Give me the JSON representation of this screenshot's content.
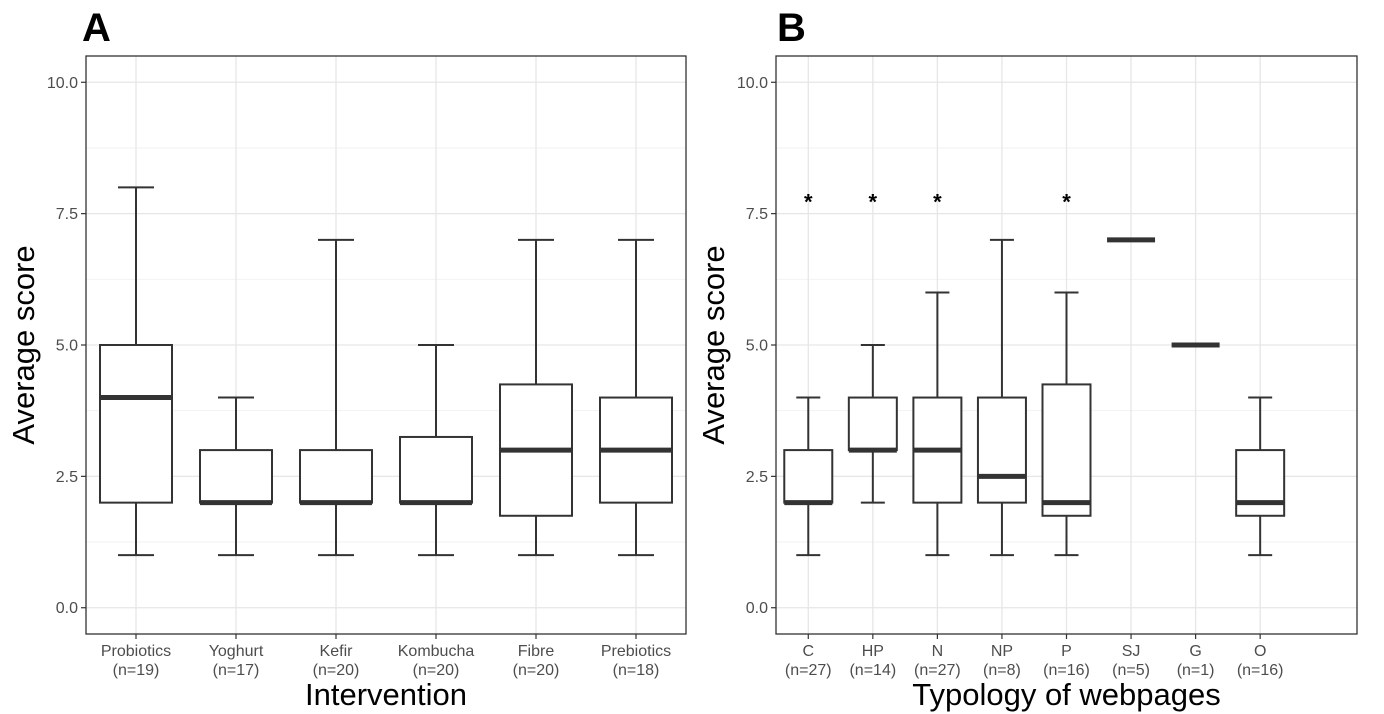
{
  "chart_data": [
    {
      "type": "box",
      "panel_label": "A",
      "xlabel": "Intervention",
      "ylabel": "Average score",
      "ylim": [
        -0.5,
        10.5
      ],
      "yticks": [
        "0.0",
        "2.5",
        "5.0",
        "7.5",
        "10.0"
      ],
      "grid": true,
      "categories": [
        {
          "label": "Probiotics",
          "n": "(n=19)",
          "min": 1,
          "q1": 2,
          "median": 4,
          "q3": 5,
          "max": 8,
          "star": ""
        },
        {
          "label": "Yoghurt",
          "n": "(n=17)",
          "min": 1,
          "q1": 2,
          "median": 2,
          "q3": 3,
          "max": 4,
          "star": ""
        },
        {
          "label": "Kefir",
          "n": "(n=20)",
          "min": 1,
          "q1": 2,
          "median": 2,
          "q3": 3,
          "max": 7,
          "star": ""
        },
        {
          "label": "Kombucha",
          "n": "(n=20)",
          "min": 1,
          "q1": 2,
          "median": 2,
          "q3": 3.25,
          "max": 5,
          "star": ""
        },
        {
          "label": "Fibre",
          "n": "(n=20)",
          "min": 1,
          "q1": 1.75,
          "median": 3,
          "q3": 4.25,
          "max": 7,
          "star": ""
        },
        {
          "label": "Prebiotics",
          "n": "(n=18)",
          "min": 1,
          "q1": 2,
          "median": 3,
          "q3": 4,
          "max": 7,
          "star": ""
        }
      ]
    },
    {
      "type": "box",
      "panel_label": "B",
      "xlabel": "Typology of webpages",
      "ylabel": "Average score",
      "ylim": [
        -0.5,
        10.5
      ],
      "yticks": [
        "0.0",
        "2.5",
        "5.0",
        "7.5",
        "10.0"
      ],
      "grid": true,
      "categories": [
        {
          "label": "C",
          "n": "(n=27)",
          "min": 1,
          "q1": 2,
          "median": 2,
          "q3": 3,
          "max": 4,
          "star": "*"
        },
        {
          "label": "HP",
          "n": "(n=14)",
          "min": 2,
          "q1": 3,
          "median": 3,
          "q3": 4,
          "max": 5,
          "star": "*"
        },
        {
          "label": "N",
          "n": "(n=27)",
          "min": 1,
          "q1": 2,
          "median": 3,
          "q3": 4,
          "max": 6,
          "star": "*"
        },
        {
          "label": "NP",
          "n": "(n=8)",
          "min": 1,
          "q1": 2,
          "median": 2.5,
          "q3": 4,
          "max": 7,
          "star": ""
        },
        {
          "label": "P",
          "n": "(n=16)",
          "min": 1,
          "q1": 1.75,
          "median": 2,
          "q3": 4.25,
          "max": 6,
          "star": "*"
        },
        {
          "label": "SJ",
          "n": "(n=5)",
          "min": 7,
          "q1": 7,
          "median": 7,
          "q3": 7,
          "max": 7,
          "star": ""
        },
        {
          "label": "G",
          "n": "(n=1)",
          "min": 5,
          "q1": 5,
          "median": 5,
          "q3": 5,
          "max": 5,
          "star": ""
        },
        {
          "label": "O",
          "n": "(n=16)",
          "min": 1,
          "q1": 1.75,
          "median": 2,
          "q3": 3,
          "max": 4,
          "star": ""
        }
      ]
    }
  ]
}
